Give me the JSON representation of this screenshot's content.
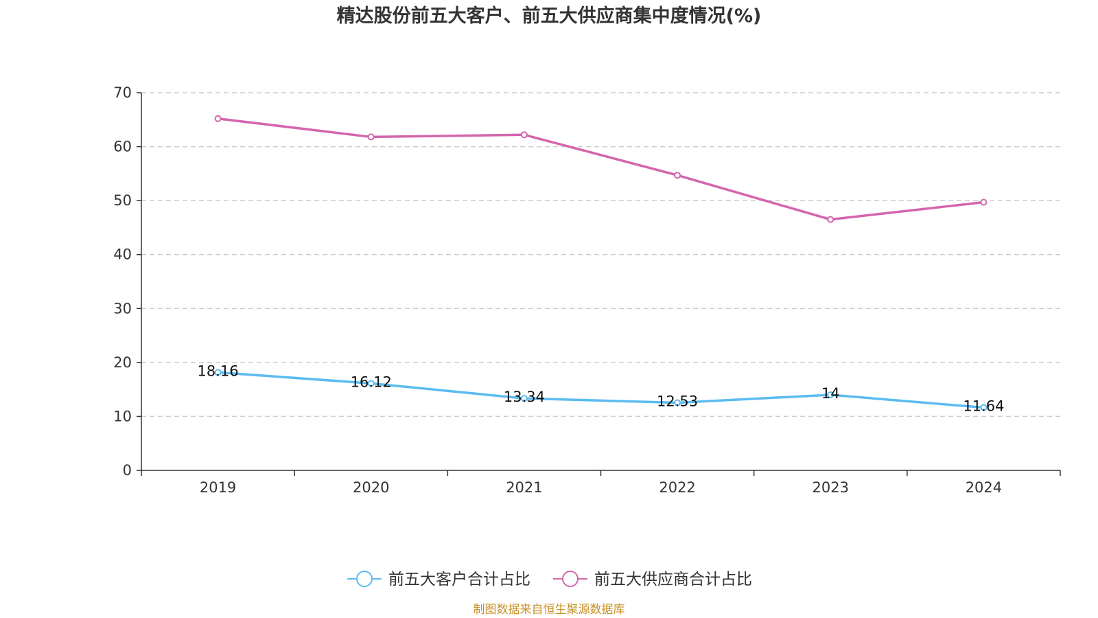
{
  "chart_data": {
    "type": "line",
    "title": "精达股份前五大客户、前五大供应商集中度情况(%)",
    "categories": [
      "2019",
      "2020",
      "2021",
      "2022",
      "2023",
      "2024"
    ],
    "series": [
      {
        "name": "前五大客户合计占比",
        "color": "#5bbcf0",
        "values": [
          18.16,
          16.12,
          13.34,
          12.53,
          14,
          11.64
        ],
        "labels": [
          "18.16",
          "16.12",
          "13.34",
          "12.53",
          "14",
          "11.64"
        ],
        "show_labels": true
      },
      {
        "name": "前五大供应商合计占比",
        "color": "#d465ad",
        "values": [
          65.2,
          61.8,
          62.2,
          54.7,
          46.5,
          49.7
        ],
        "show_labels": false
      }
    ],
    "ylim": [
      0,
      70
    ],
    "yticks": [
      "0",
      "10",
      "20",
      "30",
      "40",
      "50",
      "60",
      "70"
    ],
    "grid": true,
    "legend": "bottom-center",
    "xlabel": "",
    "ylabel": ""
  },
  "source": {
    "text": "制图数据来自恒生聚源数据库",
    "color": "#c8922a"
  }
}
